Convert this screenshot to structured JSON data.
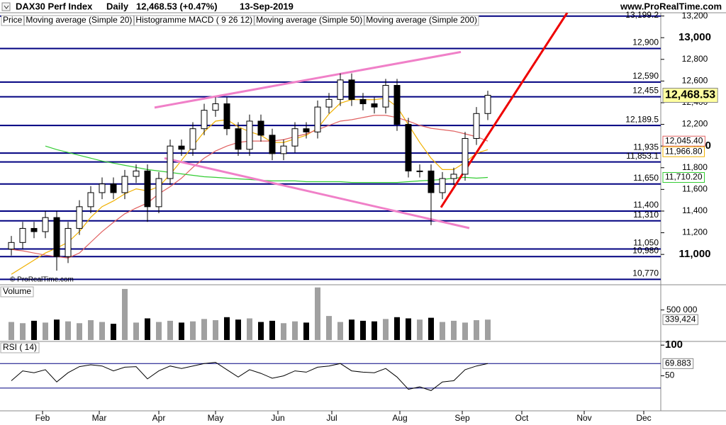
{
  "header": {
    "instrument": "DAX30 Perf Index",
    "period": "Daily",
    "price": "12,468.53 (+0.47%)",
    "date": "13-Sep-2019",
    "site": "www.ProRealTime.com",
    "watermark": "© ProRealTime.com"
  },
  "chart_data": [
    {
      "type": "candlestick",
      "name": "Price",
      "indicator": "Histogramme MACD ( 9 26 12)",
      "x": [
        -11,
        -7,
        -3,
        1,
        5,
        9,
        13,
        17,
        21,
        25,
        29,
        33,
        37,
        41,
        45,
        49,
        53,
        57,
        61,
        65,
        69,
        73,
        77,
        81,
        85,
        89,
        93,
        97,
        101,
        105,
        109,
        113,
        117,
        121,
        125,
        129,
        133,
        137,
        141,
        145,
        149,
        153,
        157
      ],
      "open": [
        11050,
        11110,
        11240,
        11210,
        11340,
        10980,
        11240,
        11440,
        11570,
        11650,
        11570,
        11720,
        11770,
        11440,
        11700,
        12000,
        11970,
        12160,
        12330,
        12390,
        12160,
        11970,
        12230,
        12100,
        11930,
        12000,
        12160,
        12130,
        12360,
        12430,
        12610,
        12430,
        12390,
        12360,
        12560,
        12200,
        11770,
        11770,
        11570,
        11700,
        11740,
        12070,
        12300
      ],
      "high": [
        11170,
        11300,
        11300,
        11400,
        11400,
        11300,
        11500,
        11630,
        11710,
        11710,
        11780,
        11830,
        11830,
        11760,
        12060,
        12060,
        12220,
        12390,
        12450,
        12450,
        12220,
        12290,
        12290,
        12160,
        12060,
        12220,
        12220,
        12420,
        12490,
        12670,
        12670,
        12490,
        12450,
        12620,
        12620,
        12260,
        11830,
        11830,
        11760,
        11800,
        12130,
        12360,
        12510
      ],
      "low": [
        10990,
        11050,
        11150,
        11150,
        10850,
        10920,
        11180,
        11380,
        11510,
        11510,
        11510,
        11660,
        11300,
        11380,
        11640,
        11910,
        11910,
        12100,
        12270,
        12100,
        11910,
        11910,
        12040,
        11870,
        11870,
        11940,
        12070,
        12070,
        12300,
        12370,
        12370,
        12330,
        12300,
        12300,
        12140,
        11710,
        11710,
        11270,
        11510,
        11640,
        11680,
        12010,
        12240
      ],
      "close": [
        11110,
        11240,
        11210,
        11340,
        10980,
        11240,
        11440,
        11570,
        11650,
        11570,
        11720,
        11770,
        11440,
        11700,
        12000,
        11970,
        12160,
        12330,
        12390,
        12160,
        11970,
        12230,
        12100,
        11930,
        12000,
        12160,
        12130,
        12360,
        12430,
        12610,
        12430,
        12390,
        12360,
        12560,
        12200,
        11770,
        11770,
        11570,
        11700,
        11740,
        12070,
        12300,
        12468.53
      ],
      "last_label": "12,468.53",
      "up_color": "#ffffff",
      "down_color": "#000000",
      "series": [
        {
          "name": "Moving average (Simple 20)",
          "color": "#f0b000",
          "last_label": "11,966.80",
          "values": [
            10816,
            10882,
            10947,
            11013,
            11059,
            11112,
            11211,
            11342,
            11441,
            11493,
            11559,
            11605,
            11586,
            11625,
            11737,
            11868,
            12000,
            12132,
            12230,
            12243,
            12178,
            12132,
            12099,
            12033,
            12033,
            12066,
            12099,
            12164,
            12296,
            12395,
            12428,
            12428,
            12428,
            12441,
            12362,
            12197,
            12033,
            11888,
            11783,
            11783,
            11849,
            11934,
            11966.8
          ]
        },
        {
          "name": "Moving average (Simple 50)",
          "color": "#e06060",
          "last_label": "12,045.40",
          "values": [
            11046,
            11033,
            11013,
            10993,
            10980,
            10967,
            11013,
            11112,
            11211,
            11296,
            11375,
            11428,
            11474,
            11559,
            11625,
            11704,
            11803,
            11888,
            11954,
            12000,
            12033,
            12046,
            12046,
            12046,
            12059,
            12086,
            12112,
            12151,
            12191,
            12230,
            12243,
            12263,
            12283,
            12283,
            12263,
            12230,
            12191,
            12164,
            12151,
            12138,
            12112,
            12086,
            12045.4
          ]
        },
        {
          "name": "Moving average (Simple 200)",
          "color": "#33cc33",
          "last_label": "11,710.20",
          "values": [
            null,
            null,
            null,
            12000,
            11967,
            11941,
            11914,
            11888,
            11862,
            11842,
            11822,
            11803,
            11783,
            11770,
            11757,
            11743,
            11730,
            11717,
            11711,
            11704,
            11697,
            11691,
            11684,
            11678,
            11678,
            11678,
            11671,
            11671,
            11671,
            11671,
            11664,
            11664,
            11664,
            11664,
            11664,
            11671,
            11678,
            11684,
            11691,
            11704,
            11711,
            11704,
            11710.2
          ]
        }
      ],
      "trendlines": [
        {
          "color": "#f080c8",
          "x": [
            39.5,
            147.5
          ],
          "y": [
            12355,
            12868
          ]
        },
        {
          "color": "#f080c8",
          "x": [
            43,
            150.5
          ],
          "y": [
            11888,
            11243
          ]
        },
        {
          "color": "#ee0000",
          "x": [
            140.5,
            185
          ],
          "y": [
            11434,
            13230
          ]
        }
      ],
      "levels": [
        {
          "value": 13199.2,
          "label": "13,199.2"
        },
        {
          "value": 12900,
          "label": "12,900"
        },
        {
          "value": 12590,
          "label": "12,590"
        },
        {
          "value": 12455,
          "label": "12,455"
        },
        {
          "value": 12189.5,
          "label": "12,189.5"
        },
        {
          "value": 11935,
          "label": "11,935"
        },
        {
          "value": 11853.1,
          "label": "11,853.1"
        },
        {
          "value": 11650,
          "label": "11,650"
        },
        {
          "value": 11400,
          "label": "11,400"
        },
        {
          "value": 11310,
          "label": "11,310"
        },
        {
          "value": 11050,
          "label": "11,050"
        },
        {
          "value": 10980,
          "label": "10,980"
        },
        {
          "value": 10770,
          "label": "10,770"
        }
      ],
      "level_color": "#000080",
      "xlim": [
        -15,
        218
      ],
      "ylim": [
        10720,
        13230
      ],
      "yticks": [
        {
          "value": 11000,
          "label": "11,000"
        },
        {
          "value": 11200,
          "label": "11,200"
        },
        {
          "value": 11400,
          "label": "11,400"
        },
        {
          "value": 11600,
          "label": "11,600"
        },
        {
          "value": 11800,
          "label": "11,800"
        },
        {
          "value": 12000,
          "label": "12,000"
        },
        {
          "value": 12200,
          "label": "12,200"
        },
        {
          "value": 12400,
          "label": "12,400"
        },
        {
          "value": 12600,
          "label": "12,600"
        },
        {
          "value": 12800,
          "label": "12,800"
        },
        {
          "value": 13000,
          "label": "13,000"
        },
        {
          "value": 13200,
          "label": "13,200"
        }
      ]
    },
    {
      "type": "bar",
      "title": "Volume",
      "values": [
        300000,
        280000,
        320000,
        290000,
        340000,
        310000,
        280000,
        330000,
        300000,
        270000,
        850000,
        290000,
        360000,
        300000,
        320000,
        290000,
        310000,
        350000,
        330000,
        380000,
        340000,
        360000,
        300000,
        320000,
        280000,
        310000,
        290000,
        875000,
        400000,
        300000,
        340000,
        320000,
        310000,
        350000,
        380000,
        360000,
        340000,
        370000,
        300000,
        320000,
        290000,
        330000,
        339424
      ],
      "last_label": "339,424",
      "up_color": "#a0a0a0",
      "down_color": "#000000",
      "xlim": [
        -15,
        218
      ],
      "ylim": [
        0,
        920000
      ],
      "yticks": [
        {
          "value": 500000,
          "label": "500 000"
        }
      ]
    },
    {
      "type": "line",
      "title": "RSI ( 14)",
      "color": "#000000",
      "values": [
        42,
        58,
        55,
        60,
        40,
        55,
        65,
        68,
        66,
        58,
        64,
        65,
        45,
        58,
        66,
        62,
        66,
        70,
        72,
        60,
        48,
        60,
        54,
        46,
        50,
        58,
        56,
        64,
        66,
        70,
        58,
        56,
        55,
        62,
        48,
        28,
        32,
        26,
        40,
        42,
        60,
        66,
        69.883
      ],
      "last_label": "69.883",
      "levels": [
        70,
        30
      ],
      "level_color": "#000080",
      "xlim": [
        -15,
        218
      ],
      "ylim": [
        -7,
        106
      ],
      "yticks": [
        100,
        50
      ],
      "xticks": [
        {
          "value": 0,
          "label": "Feb"
        },
        {
          "value": 20,
          "label": "Mar"
        },
        {
          "value": 41,
          "label": "Apr"
        },
        {
          "value": 61,
          "label": "May"
        },
        {
          "value": 83,
          "label": "Jun"
        },
        {
          "value": 102,
          "label": "Jul"
        },
        {
          "value": 126,
          "label": "Aug"
        },
        {
          "value": 148,
          "label": "Sep"
        },
        {
          "value": 169,
          "label": "Oct"
        },
        {
          "value": 191,
          "label": "Nov"
        },
        {
          "value": 212,
          "label": "Dec"
        }
      ]
    }
  ]
}
